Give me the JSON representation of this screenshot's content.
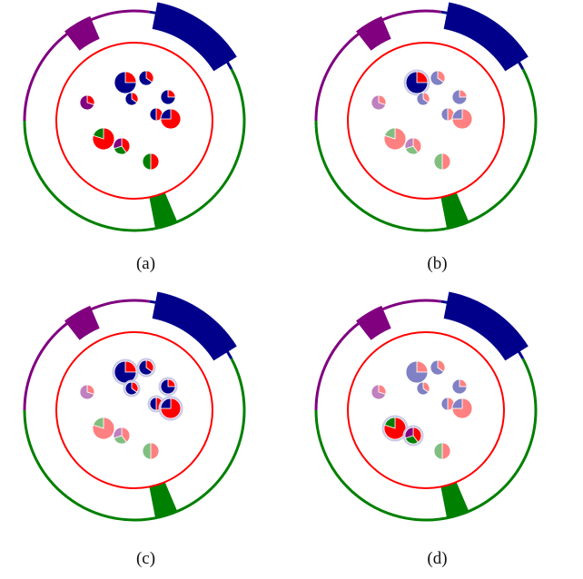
{
  "colors": {
    "blue": "#00008b",
    "purple": "#800080",
    "green": "#008000",
    "red": "#ff0000",
    "blue_faded": "#8080c5",
    "purple_faded": "#bf80bf",
    "green_faded": "#80bf80",
    "red_faded": "#ff8080",
    "halo": "#c8c8e6"
  },
  "panels": [
    {
      "caption": "(a)",
      "pies": [
        {
          "id": "p1",
          "slices": [
            [
              "red",
              0.25
            ],
            [
              "blue",
              0.75
            ]
          ],
          "faded": false
        },
        {
          "id": "p2",
          "slices": [
            [
              "red",
              0.35
            ],
            [
              "blue",
              0.65
            ]
          ],
          "faded": false
        },
        {
          "id": "p3",
          "slices": [
            [
              "red",
              0.3
            ],
            [
              "purple",
              0.7
            ]
          ],
          "faded": false
        },
        {
          "id": "p4",
          "slices": [
            [
              "red",
              0.35
            ],
            [
              "blue",
              0.65
            ]
          ],
          "faded": false
        },
        {
          "id": "p5",
          "slices": [
            [
              "red",
              0.25
            ],
            [
              "blue",
              0.75
            ]
          ],
          "faded": false
        },
        {
          "id": "p6",
          "slices": [
            [
              "red",
              0.5
            ],
            [
              "blue",
              0.5
            ]
          ],
          "faded": false
        },
        {
          "id": "p7",
          "slices": [
            [
              "red",
              0.75
            ],
            [
              "blue",
              0.25
            ]
          ],
          "faded": false
        },
        {
          "id": "p8",
          "slices": [
            [
              "red",
              0.75
            ],
            [
              "blue",
              0.25
            ]
          ],
          "faded": false
        },
        {
          "id": "p9",
          "slices": [
            [
              "red",
              0.8
            ],
            [
              "green",
              0.2
            ]
          ],
          "faded": false
        },
        {
          "id": "p10",
          "slices": [
            [
              "red",
              0.4
            ],
            [
              "green",
              0.3
            ],
            [
              "purple",
              0.3
            ]
          ],
          "faded": false
        },
        {
          "id": "p11",
          "slices": [
            [
              "red",
              0.5
            ],
            [
              "green",
              0.5
            ]
          ],
          "faded": false
        }
      ]
    },
    {
      "caption": "(b)",
      "pies": [
        {
          "id": "p1",
          "slices": [
            [
              "red",
              0.25
            ],
            [
              "blue",
              0.75
            ]
          ],
          "faded": false,
          "halo": true
        },
        {
          "id": "p2",
          "slices": [
            [
              "red",
              0.35
            ],
            [
              "blue",
              0.65
            ]
          ],
          "faded": true
        },
        {
          "id": "p3",
          "slices": [
            [
              "red",
              0.3
            ],
            [
              "purple",
              0.7
            ]
          ],
          "faded": true
        },
        {
          "id": "p4",
          "slices": [
            [
              "red",
              0.35
            ],
            [
              "blue",
              0.65
            ]
          ],
          "faded": true
        },
        {
          "id": "p5",
          "slices": [
            [
              "red",
              0.25
            ],
            [
              "blue",
              0.75
            ]
          ],
          "faded": true
        },
        {
          "id": "p6",
          "slices": [
            [
              "red",
              0.5
            ],
            [
              "blue",
              0.5
            ]
          ],
          "faded": true
        },
        {
          "id": "p7",
          "slices": [
            [
              "red",
              0.75
            ],
            [
              "blue",
              0.25
            ]
          ],
          "faded": true
        },
        {
          "id": "p8",
          "slices": [
            [
              "red",
              0.75
            ],
            [
              "blue",
              0.25
            ]
          ],
          "faded": true
        },
        {
          "id": "p9",
          "slices": [
            [
              "red",
              0.8
            ],
            [
              "green",
              0.2
            ]
          ],
          "faded": true
        },
        {
          "id": "p10",
          "slices": [
            [
              "red",
              0.4
            ],
            [
              "green",
              0.3
            ],
            [
              "purple",
              0.3
            ]
          ],
          "faded": true
        },
        {
          "id": "p11",
          "slices": [
            [
              "red",
              0.5
            ],
            [
              "green",
              0.5
            ]
          ],
          "faded": true
        }
      ]
    },
    {
      "caption": "(c)",
      "pies": [
        {
          "id": "p1",
          "slices": [
            [
              "red",
              0.25
            ],
            [
              "blue",
              0.75
            ]
          ],
          "faded": false,
          "halo": true
        },
        {
          "id": "p2",
          "slices": [
            [
              "red",
              0.35
            ],
            [
              "blue",
              0.65
            ]
          ],
          "faded": false,
          "halo": true
        },
        {
          "id": "p3",
          "slices": [
            [
              "red",
              0.3
            ],
            [
              "purple",
              0.7
            ]
          ],
          "faded": true
        },
        {
          "id": "p4",
          "slices": [
            [
              "red",
              0.35
            ],
            [
              "blue",
              0.65
            ]
          ],
          "faded": false,
          "halo": true
        },
        {
          "id": "p5",
          "slices": [
            [
              "red",
              0.25
            ],
            [
              "blue",
              0.75
            ]
          ],
          "faded": false,
          "halo": true
        },
        {
          "id": "p6",
          "slices": [
            [
              "red",
              0.5
            ],
            [
              "blue",
              0.5
            ]
          ],
          "faded": false,
          "halo": true
        },
        {
          "id": "p7",
          "slices": [
            [
              "red",
              0.75
            ],
            [
              "blue",
              0.25
            ]
          ],
          "faded": false,
          "halo": true
        },
        {
          "id": "p8",
          "slices": [
            [
              "red",
              0.75
            ],
            [
              "blue",
              0.25
            ]
          ],
          "faded": false,
          "halo": true
        },
        {
          "id": "p9",
          "slices": [
            [
              "red",
              0.8
            ],
            [
              "green",
              0.2
            ]
          ],
          "faded": true
        },
        {
          "id": "p10",
          "slices": [
            [
              "red",
              0.4
            ],
            [
              "green",
              0.3
            ],
            [
              "purple",
              0.3
            ]
          ],
          "faded": true
        },
        {
          "id": "p11",
          "slices": [
            [
              "red",
              0.5
            ],
            [
              "green",
              0.5
            ]
          ],
          "faded": true
        }
      ]
    },
    {
      "caption": "(d)",
      "pies": [
        {
          "id": "p1",
          "slices": [
            [
              "red",
              0.25
            ],
            [
              "blue",
              0.75
            ]
          ],
          "faded": true
        },
        {
          "id": "p2",
          "slices": [
            [
              "red",
              0.35
            ],
            [
              "blue",
              0.65
            ]
          ],
          "faded": true
        },
        {
          "id": "p3",
          "slices": [
            [
              "red",
              0.3
            ],
            [
              "purple",
              0.7
            ]
          ],
          "faded": true
        },
        {
          "id": "p4",
          "slices": [
            [
              "red",
              0.35
            ],
            [
              "blue",
              0.65
            ]
          ],
          "faded": true
        },
        {
          "id": "p5",
          "slices": [
            [
              "red",
              0.25
            ],
            [
              "blue",
              0.75
            ]
          ],
          "faded": true
        },
        {
          "id": "p6",
          "slices": [
            [
              "red",
              0.5
            ],
            [
              "blue",
              0.5
            ]
          ],
          "faded": true
        },
        {
          "id": "p7",
          "slices": [
            [
              "red",
              0.75
            ],
            [
              "blue",
              0.25
            ]
          ],
          "faded": true
        },
        {
          "id": "p8",
          "slices": [
            [
              "red",
              0.75
            ],
            [
              "blue",
              0.25
            ]
          ],
          "faded": true
        },
        {
          "id": "p9",
          "slices": [
            [
              "red",
              0.8
            ],
            [
              "green",
              0.2
            ]
          ],
          "faded": false,
          "halo": true
        },
        {
          "id": "p10",
          "slices": [
            [
              "red",
              0.4
            ],
            [
              "green",
              0.3
            ],
            [
              "purple",
              0.3
            ]
          ],
          "faded": false,
          "halo": true
        },
        {
          "id": "p11",
          "slices": [
            [
              "red",
              0.5
            ],
            [
              "green",
              0.5
            ]
          ],
          "faded": true
        }
      ]
    }
  ]
}
